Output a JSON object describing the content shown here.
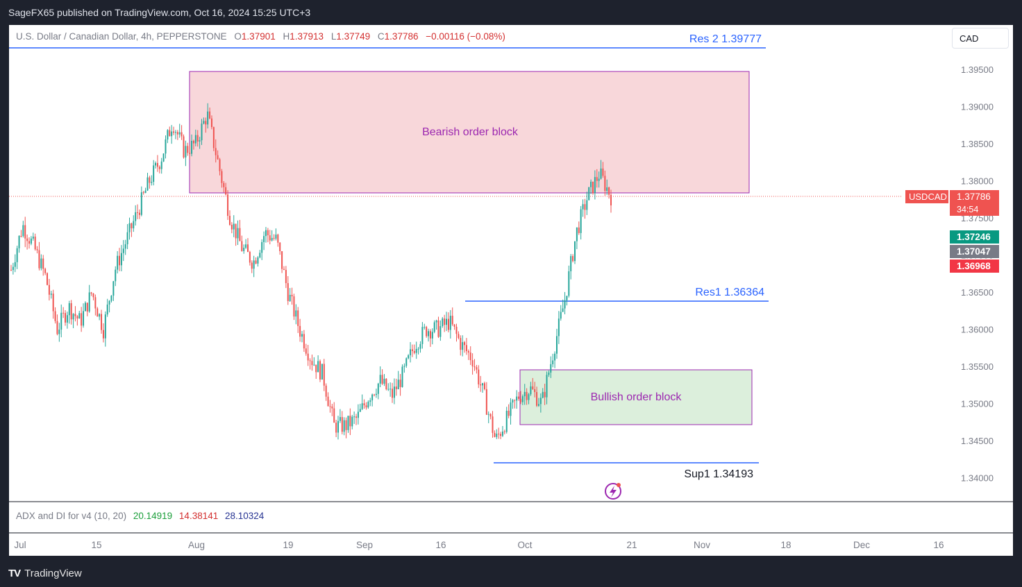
{
  "header": {
    "publisher": "SageFX65 published on TradingView.com, Oct 16, 2024 15:25 UTC+3"
  },
  "legend": {
    "title": "U.S. Dollar / Canadian Dollar, 4h, PEPPERSTONE",
    "o_label": "O",
    "o": "1.37901",
    "h_label": "H",
    "h": "1.37913",
    "l_label": "L",
    "l": "1.37749",
    "c_label": "C",
    "c": "1.37786",
    "change": "−0.00116 (−0.08%)"
  },
  "currency_button": "CAD",
  "price_tags": {
    "symbol": "USDCAD",
    "last": "1.37786",
    "countdown": "34:54",
    "green": "1.37246",
    "gray": "1.37047",
    "red": "1.36968"
  },
  "indicator": {
    "name": "ADX and DI for v4 (10, 20)",
    "v1": "20.14919",
    "v2": "14.38141",
    "v3": "28.10324"
  },
  "footer": {
    "brand": "TradingView",
    "logo": "TV"
  },
  "colors": {
    "up": "#26a69a",
    "down": "#ef5350",
    "line": "#2962ff",
    "bear_zone": "#f8d7da",
    "bull_zone": "#dcefdc",
    "zone_border": "#9c27b0"
  },
  "icons": [
    "tradingview-logo-icon",
    "lightning-event-icon"
  ],
  "chart_data": {
    "type": "candlestick",
    "title": "U.S. Dollar / Canadian Dollar, 4h, PEPPERSTONE",
    "y_ticks": [
      "1.39500",
      "1.39000",
      "1.38500",
      "1.38000",
      "1.37500",
      "1.37000",
      "1.36500",
      "1.36000",
      "1.35500",
      "1.35000",
      "1.34500",
      "1.34000"
    ],
    "x_ticks": [
      "Jul",
      "15",
      "Aug",
      "19",
      "Sep",
      "16",
      "Oct",
      "21",
      "Nov",
      "18",
      "Dec",
      "16"
    ],
    "ylim": [
      1.3387,
      1.401
    ],
    "last_price": 1.37786,
    "annotations": [
      {
        "label": "Res 2 1.39777",
        "level": 1.39777
      },
      {
        "label": "Res1 1.36364",
        "level": 1.36364
      },
      {
        "label": "Sup1 1.34193",
        "level": 1.34193
      }
    ],
    "zones": [
      {
        "label": "Bearish order block",
        "low": 1.3785,
        "high": 1.3948
      },
      {
        "label": "Bullish order block",
        "low": 1.3472,
        "high": 1.3546
      }
    ],
    "series": [
      {
        "key": "close",
        "values": [
          1.368,
          1.374,
          1.371,
          1.367,
          1.36,
          1.363,
          1.361,
          1.365,
          1.36,
          1.368,
          1.372,
          1.376,
          1.38,
          1.383,
          1.388,
          1.384,
          1.385,
          1.389,
          1.382,
          1.375,
          1.371,
          1.369,
          1.373,
          1.372,
          1.365,
          1.36,
          1.356,
          1.354,
          1.347,
          1.347,
          1.348,
          1.351,
          1.353,
          1.351,
          1.354,
          1.358,
          1.36,
          1.36,
          1.361,
          1.358,
          1.356,
          1.351,
          1.345,
          1.348,
          1.351,
          1.352,
          1.35,
          1.357,
          1.364,
          1.373,
          1.378,
          1.381,
          1.3779
        ]
      }
    ]
  }
}
